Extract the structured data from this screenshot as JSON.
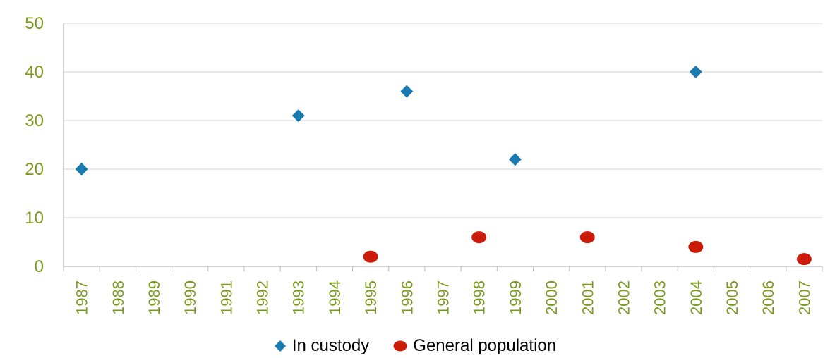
{
  "chart_data": {
    "type": "scatter",
    "title": "",
    "xlabel": "",
    "ylabel": "",
    "categories": [
      "1987",
      "1988",
      "1989",
      "1990",
      "1991",
      "1992",
      "1993",
      "1994",
      "1995",
      "1996",
      "1997",
      "1998",
      "1999",
      "2000",
      "2001",
      "2002",
      "2003",
      "2004",
      "2005",
      "2006",
      "2007"
    ],
    "ylim": [
      0,
      50
    ],
    "yticks": [
      "0",
      "10",
      "20",
      "30",
      "40",
      "50"
    ],
    "grid": "horizontal",
    "legend_position": "bottom",
    "series": [
      {
        "name": "In custody",
        "marker": "diamond",
        "color": "#1A7BB0",
        "points": [
          {
            "x": "1987",
            "y": 20
          },
          {
            "x": "1993",
            "y": 31
          },
          {
            "x": "1996",
            "y": 36
          },
          {
            "x": "1999",
            "y": 22
          },
          {
            "x": "2004",
            "y": 40
          }
        ]
      },
      {
        "name": "General population",
        "marker": "circle",
        "color": "#CC1A0A",
        "points": [
          {
            "x": "1995",
            "y": 2
          },
          {
            "x": "1998",
            "y": 6
          },
          {
            "x": "2001",
            "y": 6
          },
          {
            "x": "2004",
            "y": 4
          },
          {
            "x": "2007",
            "y": 1.5
          }
        ]
      }
    ],
    "colors": {
      "axis_text": "#7A9A1E",
      "grid": "#D0D0D0",
      "axis": "#B8B8B8"
    }
  }
}
